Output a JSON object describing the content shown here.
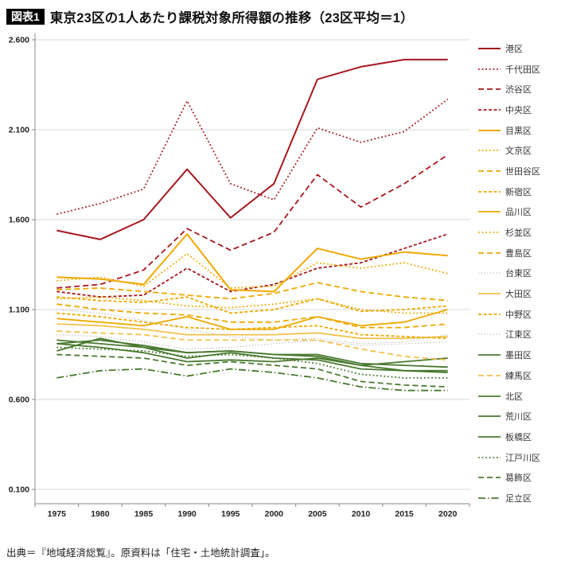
{
  "header": {
    "tag": "図表1",
    "title": "東京23区の1人あたり課税対象所得額の推移（23区平均＝1）"
  },
  "footer": {
    "source": "出典＝『地域経済総覧』。原資料は「住宅・土地統計調査」。"
  },
  "colors": {
    "dark_red": "#a6181f",
    "amber": "#eda900",
    "light_amber": "#f2c14e",
    "gray": "#9a988a",
    "green": "#49792f",
    "grid": "#d9d9d9",
    "axis": "#888888"
  },
  "chart_data": {
    "type": "line",
    "title": "東京23区の1人あたり課税対象所得額の推移（23区平均＝1）",
    "xlabel": "",
    "ylabel": "",
    "x": [
      "1975",
      "1980",
      "1985",
      "1990",
      "1995",
      "2000",
      "2005",
      "2010",
      "2015",
      "2020"
    ],
    "ylim": [
      0.1,
      2.6
    ],
    "yticks": [
      0.1,
      0.6,
      1.1,
      1.6,
      2.1,
      2.6
    ],
    "ytick_labels": [
      "0.100",
      "0.600",
      "1.100",
      "1.600",
      "2.100",
      "2.600"
    ],
    "grid": true,
    "legend_position": "right",
    "series": [
      {
        "name": "港区",
        "color": "#a6181f",
        "dash": "solid",
        "width": 2.0,
        "values": [
          1.54,
          1.49,
          1.6,
          1.88,
          1.61,
          1.8,
          2.38,
          2.45,
          2.49,
          2.49
        ]
      },
      {
        "name": "千代田区",
        "color": "#a6181f",
        "dash": "dot",
        "width": 1.8,
        "values": [
          1.63,
          1.69,
          1.77,
          2.26,
          1.8,
          1.71,
          2.11,
          2.03,
          2.09,
          2.27
        ]
      },
      {
        "name": "渋谷区",
        "color": "#a6181f",
        "dash": "dash",
        "width": 1.8,
        "values": [
          1.22,
          1.24,
          1.32,
          1.55,
          1.43,
          1.53,
          1.85,
          1.67,
          1.8,
          1.96
        ]
      },
      {
        "name": "中央区",
        "color": "#a6181f",
        "dash": "dash-short",
        "width": 1.8,
        "values": [
          1.2,
          1.17,
          1.18,
          1.33,
          1.2,
          1.24,
          1.33,
          1.36,
          1.44,
          1.52
        ]
      },
      {
        "name": "目黒区",
        "color": "#eda900",
        "dash": "solid",
        "width": 2.0,
        "values": [
          1.28,
          1.27,
          1.24,
          1.52,
          1.21,
          1.2,
          1.44,
          1.38,
          1.42,
          1.4
        ]
      },
      {
        "name": "文京区",
        "color": "#eda900",
        "dash": "dot",
        "width": 1.8,
        "values": [
          1.26,
          1.28,
          1.23,
          1.41,
          1.22,
          1.23,
          1.36,
          1.33,
          1.36,
          1.3
        ]
      },
      {
        "name": "世田谷区",
        "color": "#eda900",
        "dash": "dash",
        "width": 1.8,
        "values": [
          1.21,
          1.22,
          1.2,
          1.18,
          1.16,
          1.19,
          1.25,
          1.2,
          1.17,
          1.15
        ]
      },
      {
        "name": "新宿区",
        "color": "#eda900",
        "dash": "dash-short",
        "width": 1.8,
        "values": [
          1.17,
          1.15,
          1.14,
          1.17,
          1.08,
          1.1,
          1.16,
          1.09,
          1.1,
          1.12
        ]
      },
      {
        "name": "品川区",
        "color": "#eda900",
        "dash": "solid",
        "width": 1.8,
        "values": [
          1.05,
          1.03,
          1.01,
          1.06,
          0.99,
          0.99,
          1.06,
          1.01,
          1.03,
          1.1
        ]
      },
      {
        "name": "杉並区",
        "color": "#eda900",
        "dash": "dot",
        "width": 1.8,
        "values": [
          1.16,
          1.17,
          1.15,
          1.12,
          1.11,
          1.13,
          1.16,
          1.1,
          1.08,
          1.08
        ]
      },
      {
        "name": "豊島区",
        "color": "#eda900",
        "dash": "dash",
        "width": 1.8,
        "values": [
          1.13,
          1.1,
          1.08,
          1.07,
          1.03,
          1.03,
          1.06,
          1.0,
          1.0,
          1.02
        ]
      },
      {
        "name": "台東区",
        "color": "#9a988a",
        "dash": "dot-fine",
        "width": 1.0,
        "values": [
          1.1,
          1.08,
          1.04,
          0.99,
          0.95,
          0.93,
          0.94,
          0.91,
          0.92,
          0.96
        ]
      },
      {
        "name": "大田区",
        "color": "#f2c14e",
        "dash": "solid",
        "width": 1.8,
        "values": [
          1.02,
          1.01,
          0.99,
          0.96,
          0.96,
          0.96,
          0.97,
          0.94,
          0.94,
          0.95
        ]
      },
      {
        "name": "中野区",
        "color": "#eda900",
        "dash": "dash-short",
        "width": 1.8,
        "values": [
          1.08,
          1.06,
          1.03,
          1.0,
          0.99,
          1.0,
          1.01,
          0.96,
          0.95,
          0.94
        ]
      },
      {
        "name": "江東区",
        "color": "#9a988a",
        "dash": "dot-fine",
        "width": 1.0,
        "values": [
          0.96,
          0.95,
          0.92,
          0.88,
          0.89,
          0.91,
          0.93,
          0.9,
          0.91,
          0.92
        ]
      },
      {
        "name": "墨田区",
        "color": "#49792f",
        "dash": "solid",
        "width": 1.8,
        "values": [
          0.91,
          0.89,
          0.86,
          0.81,
          0.82,
          0.81,
          0.83,
          0.79,
          0.81,
          0.83
        ]
      },
      {
        "name": "練馬区",
        "color": "#f2c14e",
        "dash": "dash",
        "width": 1.8,
        "values": [
          0.98,
          0.97,
          0.96,
          0.93,
          0.93,
          0.93,
          0.93,
          0.88,
          0.84,
          0.82
        ]
      },
      {
        "name": "北区",
        "color": "#49792f",
        "dash": "solid",
        "width": 1.8,
        "values": [
          0.91,
          0.93,
          0.9,
          0.86,
          0.87,
          0.85,
          0.85,
          0.8,
          0.79,
          0.78
        ]
      },
      {
        "name": "荒川区",
        "color": "#49792f",
        "dash": "solid",
        "width": 1.8,
        "values": [
          0.87,
          0.94,
          0.89,
          0.83,
          0.86,
          0.83,
          0.82,
          0.77,
          0.76,
          0.76
        ]
      },
      {
        "name": "板橋区",
        "color": "#49792f",
        "dash": "solid",
        "width": 1.8,
        "values": [
          0.93,
          0.91,
          0.89,
          0.86,
          0.87,
          0.85,
          0.84,
          0.79,
          0.76,
          0.75
        ]
      },
      {
        "name": "江戸川区",
        "color": "#49792f",
        "dash": "dot",
        "width": 1.8,
        "values": [
          0.89,
          0.88,
          0.87,
          0.84,
          0.85,
          0.83,
          0.8,
          0.74,
          0.72,
          0.72
        ]
      },
      {
        "name": "葛飾区",
        "color": "#49792f",
        "dash": "dash",
        "width": 1.8,
        "values": [
          0.85,
          0.84,
          0.83,
          0.79,
          0.81,
          0.79,
          0.77,
          0.7,
          0.68,
          0.67
        ]
      },
      {
        "name": "足立区",
        "color": "#49792f",
        "dash": "dashdot",
        "width": 1.8,
        "values": [
          0.72,
          0.76,
          0.77,
          0.73,
          0.77,
          0.75,
          0.72,
          0.67,
          0.65,
          0.65
        ]
      }
    ]
  }
}
